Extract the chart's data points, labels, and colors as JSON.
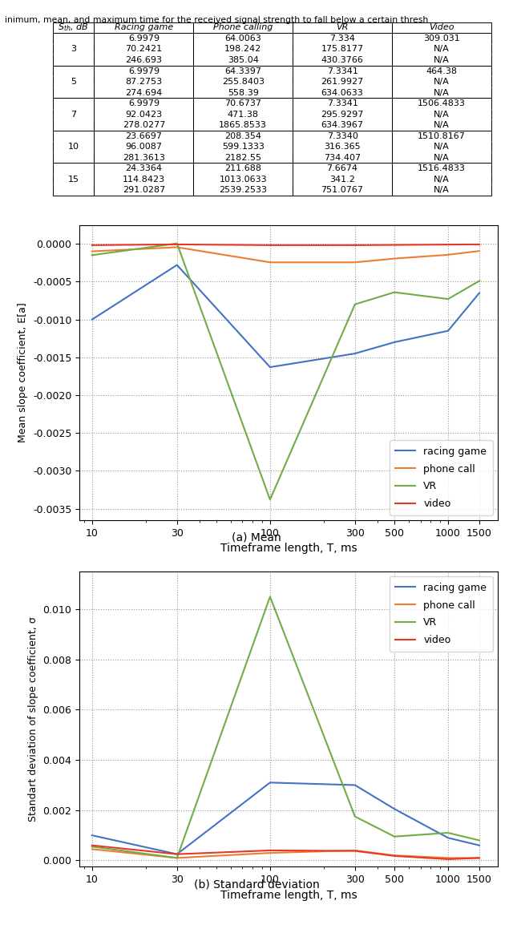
{
  "x_ticks": [
    10,
    30,
    100,
    300,
    500,
    1000,
    1500
  ],
  "mean_data": {
    "racing_game": [
      -0.001,
      -0.00028,
      -0.00163,
      -0.00145,
      -0.0013,
      -0.00115,
      -0.00065
    ],
    "phone_call": [
      -0.0001,
      -4.5e-05,
      -0.000245,
      -0.000245,
      -0.000195,
      -0.000145,
      -9.5e-05
    ],
    "VR": [
      -0.00015,
      5e-06,
      -0.00338,
      -0.0008,
      -0.00064,
      -0.00073,
      -0.00049
    ],
    "video": [
      -1.8e-05,
      -8e-06,
      -1.8e-05,
      -1.8e-05,
      -1.5e-05,
      -1e-05,
      -8e-06
    ]
  },
  "std_data": {
    "racing_game": [
      0.001,
      0.00025,
      0.0031,
      0.003,
      0.00205,
      0.0009,
      0.0006
    ],
    "phone_call": [
      0.00045,
      0.0001,
      0.0003,
      0.0004,
      0.0002,
      0.0001,
      0.0001
    ],
    "VR": [
      0.00055,
      0.0001,
      0.0105,
      0.00175,
      0.00095,
      0.0011,
      0.0008
    ],
    "video": [
      0.0006,
      0.00025,
      0.0004,
      0.00038,
      0.00018,
      5e-05,
      0.0001
    ]
  },
  "colors": {
    "racing_game": "#4472c4",
    "phone_call": "#ed7d31",
    "VR": "#70ad47",
    "video": "#e5392a"
  },
  "mean_ylim": [
    -0.00365,
    0.00025
  ],
  "std_ylim": [
    -0.00025,
    0.0115
  ],
  "mean_yticks": [
    0.0,
    -0.0005,
    -0.001,
    -0.0015,
    -0.002,
    -0.0025,
    -0.003,
    -0.0035
  ],
  "std_yticks": [
    0.0,
    0.002,
    0.004,
    0.006,
    0.008,
    0.01
  ],
  "xlabel": "Timeframe length, T, ms",
  "mean_ylabel": "Mean slope coefficient, E[a]",
  "std_ylabel": "Standart deviation of slope coefficient, σ",
  "caption_a": "(a) Mean",
  "caption_b": "(b) Standard deviation",
  "legend_labels": [
    "racing game",
    "phone call",
    "VR",
    "video"
  ],
  "top_text": "inimum, mean, and maximum time for the received signal strength to fall below a certain thresh",
  "sth_vals": [
    "3",
    "5",
    "7",
    "10",
    "15"
  ],
  "rg_vals": [
    [
      "6.9979",
      "70.2421",
      "246.693"
    ],
    [
      "6.9979",
      "87.2753",
      "274.694"
    ],
    [
      "6.9979",
      "92.0423",
      "278.0277"
    ],
    [
      "23.6697",
      "96.0087",
      "281.3613"
    ],
    [
      "24.3364",
      "114.8423",
      "291.0287"
    ]
  ],
  "pc_vals": [
    [
      "64.0063",
      "198.242",
      "385.04"
    ],
    [
      "64.3397",
      "255.8403",
      "558.39"
    ],
    [
      "70.6737",
      "471.38",
      "1865.8533"
    ],
    [
      "208.354",
      "599.1333",
      "2182.55"
    ],
    [
      "211.688",
      "1013.0633",
      "2539.2533"
    ]
  ],
  "vr_vals": [
    [
      "7.334",
      "175.8177",
      "430.3766"
    ],
    [
      "7.3341",
      "261.9927",
      "634.0633"
    ],
    [
      "7.3341",
      "295.9297",
      "634.3967"
    ],
    [
      "7.3340",
      "316.365",
      "734.407"
    ],
    [
      "7.6674",
      "341.2",
      "751.0767"
    ]
  ],
  "vid_vals": [
    [
      "309.031",
      "N/A",
      "N/A"
    ],
    [
      "464.38",
      "N/A",
      "N/A"
    ],
    [
      "1506.4833",
      "N/A",
      "N/A"
    ],
    [
      "1510.8167",
      "N/A",
      "N/A"
    ],
    [
      "1516.4833",
      "N/A",
      "N/A"
    ]
  ],
  "col_header": [
    "$S_{th}$, dB",
    "Racing game",
    "Phone calling",
    "VR",
    "Video"
  ]
}
